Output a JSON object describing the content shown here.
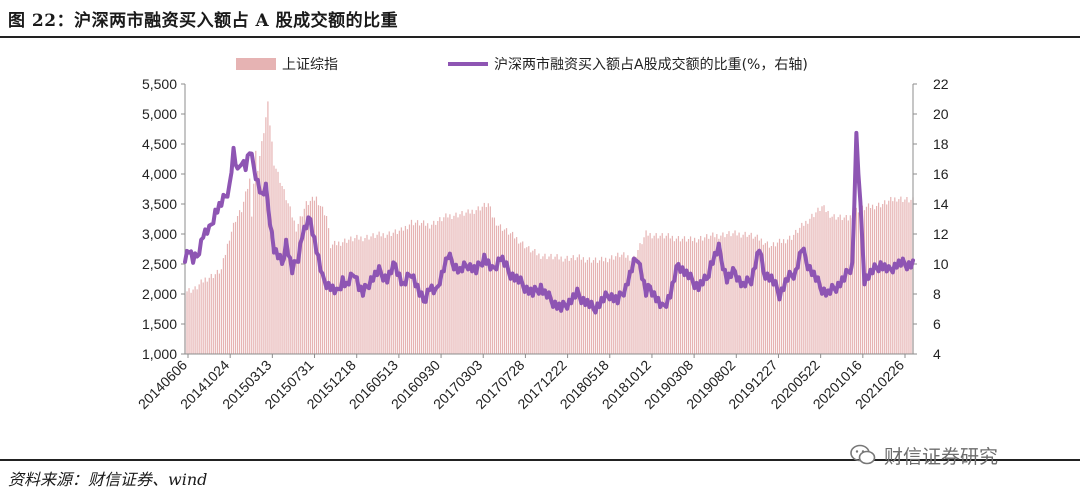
{
  "header": {
    "title": "图 22：沪深两市融资买入额占 A 股成交额的比重"
  },
  "footer": {
    "source": "资料来源：财信证券、wind",
    "watermark": "财信证券研究"
  },
  "colors": {
    "bars": "#e6b3b3",
    "line": "#8e55b3",
    "axis": "#8c8c8c"
  },
  "chart_data": {
    "type": "bar+line",
    "legend_position": "top",
    "grid": false,
    "x_tick_labels": [
      "20140606",
      "20141024",
      "20150313",
      "20150731",
      "20151218",
      "20160513",
      "20160930",
      "20170303",
      "20170728",
      "20171222",
      "20180518",
      "20181012",
      "20190308",
      "20190802",
      "20191227",
      "20200522",
      "20201016",
      "20210226"
    ],
    "y_left": {
      "ticks": [
        "1,000",
        "1,500",
        "2,000",
        "2,500",
        "3,000",
        "3,500",
        "4,000",
        "4,500",
        "5,000",
        "5,500"
      ],
      "ylim": [
        1000,
        5500
      ]
    },
    "y_right": {
      "ticks": [
        "4",
        "6",
        "8",
        "10",
        "12",
        "14",
        "16",
        "18",
        "20",
        "22"
      ],
      "ylim": [
        4,
        22
      ]
    },
    "series": [
      {
        "name": "上证综指",
        "kind": "bar",
        "axis": "left",
        "anchors_x": [
          0,
          5,
          10,
          15,
          18,
          22,
          25,
          28,
          30,
          32,
          33,
          35,
          36,
          38,
          41,
          44,
          48,
          55,
          60,
          65,
          70,
          72,
          80,
          90,
          100,
          107,
          112,
          121,
          130,
          140,
          150,
          152,
          155,
          165,
          170,
          175,
          185,
          195,
          205,
          215,
          222,
          228,
          240,
          250,
          258,
          268,
          278,
          285,
          290,
          300,
          310,
          315,
          320,
          328,
          332,
          338,
          345,
          352,
          360,
          370,
          380
        ],
        "anchors_y": [
          2050,
          2080,
          2250,
          2330,
          2400,
          2950,
          3250,
          3400,
          3650,
          3900,
          3350,
          4350,
          4100,
          4500,
          5150,
          4200,
          3800,
          3100,
          3500,
          3600,
          3300,
          2800,
          2900,
          2950,
          3000,
          3050,
          3200,
          3150,
          3300,
          3350,
          3500,
          3300,
          3150,
          2900,
          2750,
          2650,
          2600,
          2600,
          2550,
          2650,
          2600,
          3000,
          2950,
          2900,
          2950,
          3000,
          3000,
          2900,
          2800,
          2950,
          3300,
          3450,
          3300,
          3250,
          3400,
          3450,
          3500,
          3600,
          3550,
          3700,
          3600
        ]
      },
      {
        "name": "沪深两市融资买入额占A股成交额的比重(%，右轴)",
        "kind": "line",
        "axis": "right",
        "anchors_x": [
          0,
          2,
          4,
          6,
          9,
          12,
          15,
          18,
          20,
          22,
          24,
          26,
          28,
          30,
          32,
          34,
          36,
          38,
          40,
          42,
          44,
          46,
          48,
          50,
          53,
          56,
          58,
          60,
          62,
          65,
          68,
          72,
          75,
          78,
          80,
          82,
          84,
          86,
          88,
          92,
          96,
          100,
          104,
          108,
          110,
          112,
          116,
          118,
          121,
          124,
          126,
          130,
          133,
          136,
          140,
          144,
          148,
          152,
          156,
          160,
          164,
          168,
          172,
          176,
          178,
          182,
          186,
          190,
          194,
          198,
          202,
          206,
          210,
          214,
          218,
          222,
          224,
          228,
          230,
          234,
          236,
          240,
          244,
          250,
          254,
          258,
          260,
          264,
          268,
          272,
          276,
          280,
          284,
          286,
          290,
          294,
          298,
          302,
          305,
          308,
          310,
          314,
          318,
          322,
          326,
          330,
          332,
          336,
          340,
          344,
          348,
          350,
          352,
          354,
          356,
          358,
          360
        ],
        "anchors_y": [
          10.5,
          11.0,
          10.2,
          10.5,
          12.0,
          12.2,
          13.5,
          14.0,
          14.5,
          15.2,
          17.5,
          16.0,
          17.0,
          16.5,
          17.5,
          16.5,
          15.5,
          14.5,
          15.0,
          13.0,
          11.0,
          10.5,
          10.0,
          11.5,
          9.5,
          10.5,
          12.0,
          12.5,
          13.0,
          11.0,
          9.0,
          8.5,
          8.0,
          9.0,
          8.5,
          9.0,
          9.5,
          8.5,
          8.0,
          9.0,
          9.5,
          9.0,
          10.0,
          8.5,
          9.0,
          9.5,
          8.0,
          7.5,
          8.5,
          8.0,
          9.0,
          10.5,
          10.0,
          9.5,
          10.0,
          9.5,
          10.5,
          9.5,
          10.5,
          9.5,
          9.0,
          8.5,
          8.0,
          8.5,
          8.0,
          7.5,
          7.0,
          7.5,
          8.0,
          7.5,
          7.0,
          7.5,
          8.0,
          7.5,
          8.5,
          10.0,
          10.5,
          8.0,
          8.5,
          7.5,
          7.0,
          8.0,
          10.0,
          9.0,
          8.5,
          9.0,
          10.0,
          11.0,
          9.0,
          9.5,
          8.5,
          9.0,
          11.0,
          9.5,
          9.0,
          8.0,
          9.0,
          9.5,
          11.0,
          10.0,
          9.5,
          8.5,
          8.0,
          8.5,
          9.0,
          10.0,
          18.5,
          9.0,
          9.5,
          10.0,
          9.5,
          9.8,
          10.0,
          10.0,
          10.0,
          10.0,
          10.0
        ]
      }
    ]
  }
}
